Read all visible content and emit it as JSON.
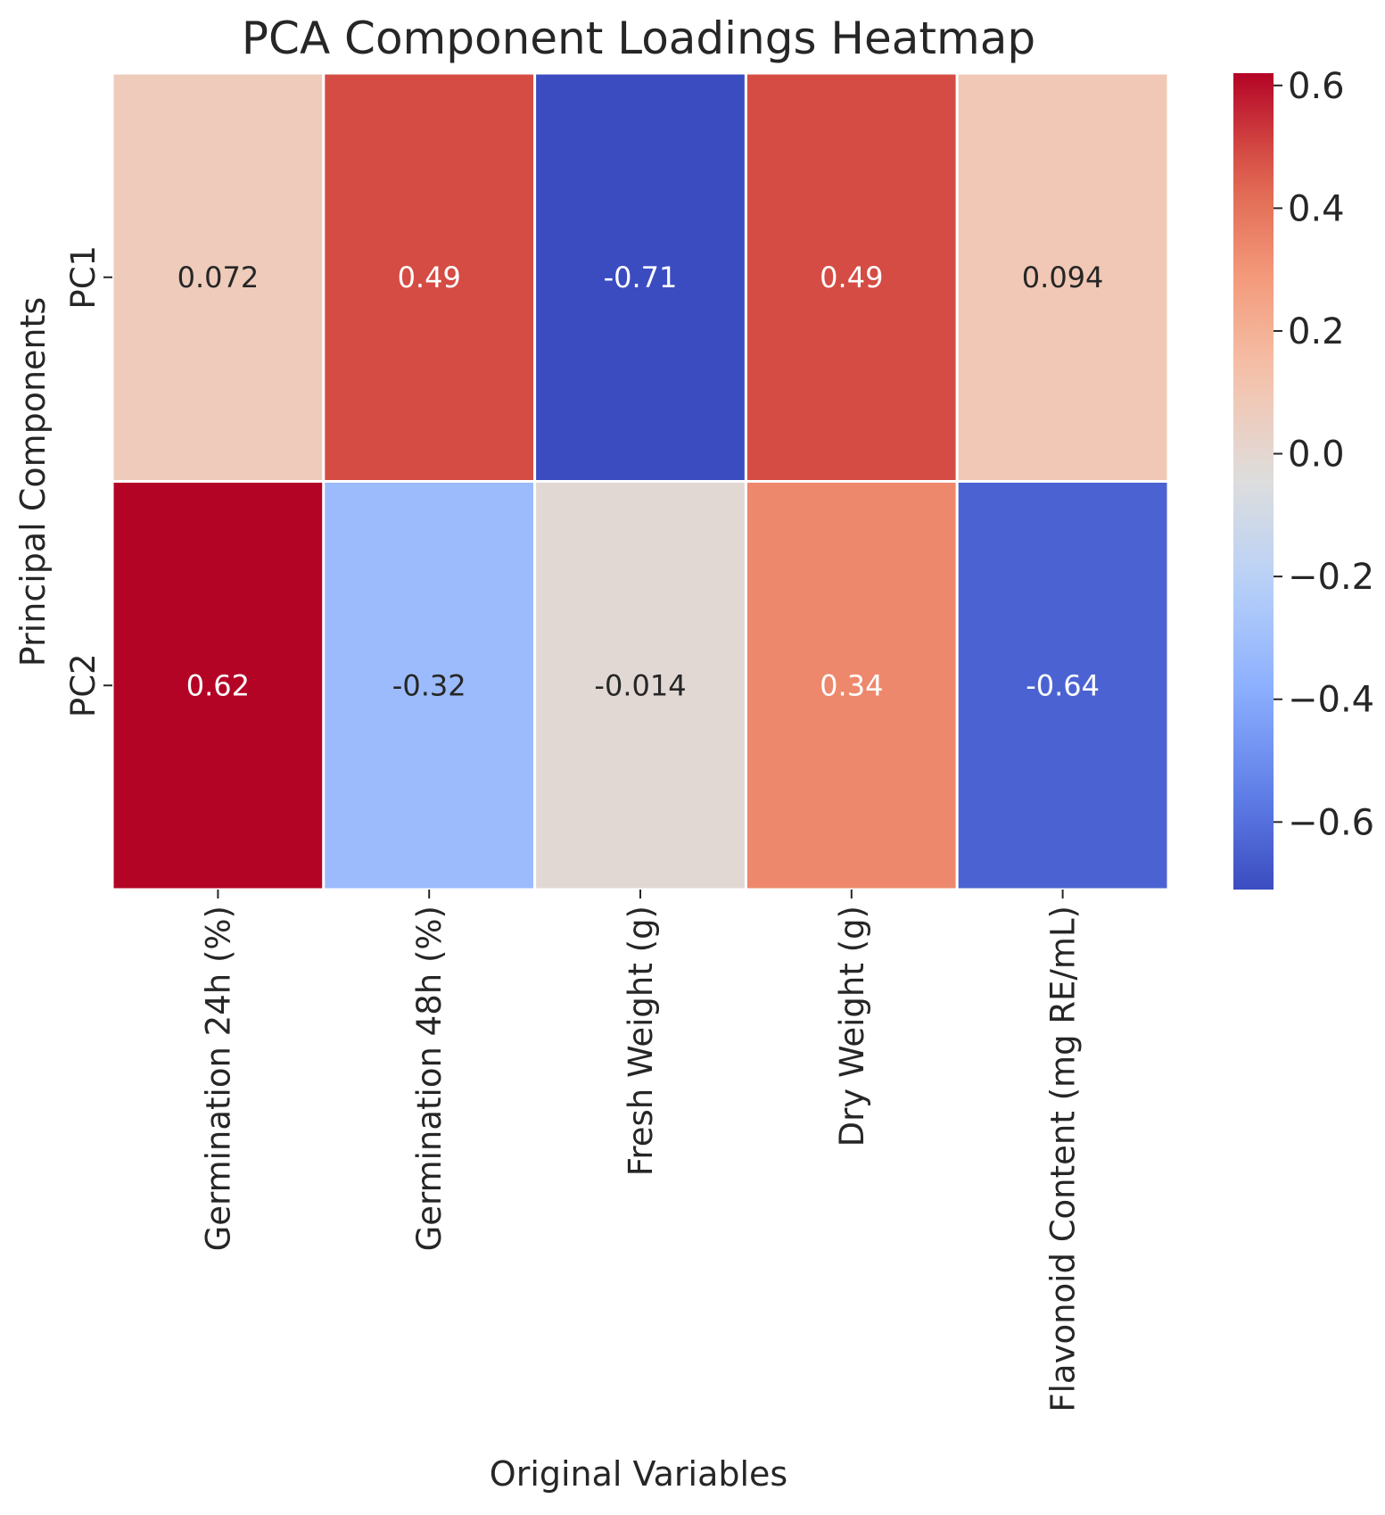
{
  "chart_data": {
    "type": "heatmap",
    "title": "PCA Component Loadings Heatmap",
    "xlabel": "Original Variables",
    "ylabel": "Principal Components",
    "columns": [
      "Germination 24h (%)",
      "Germination 48h (%)",
      "Fresh Weight (g)",
      "Dry Weight (g)",
      "Flavonoid Content (mg RE/mL)"
    ],
    "rows": [
      "PC1",
      "PC2"
    ],
    "values": [
      [
        0.072,
        0.49,
        -0.71,
        0.49,
        0.094
      ],
      [
        0.62,
        -0.32,
        -0.014,
        0.34,
        -0.64
      ]
    ],
    "value_labels": [
      [
        "0.072",
        "0.49",
        "-0.71",
        "0.49",
        "0.094"
      ],
      [
        "0.62",
        "-0.32",
        "-0.014",
        "0.34",
        "-0.64"
      ]
    ],
    "colormap": "coolwarm",
    "vmin": -0.71,
    "vmax": 0.62,
    "colorbar_ticks": [
      0.6,
      0.4,
      0.2,
      0.0,
      -0.2,
      -0.4,
      -0.6
    ],
    "colorbar_tick_labels": [
      "0.6",
      "0.4",
      "0.2",
      "0.0",
      "−0.2",
      "−0.4",
      "−0.6"
    ]
  }
}
